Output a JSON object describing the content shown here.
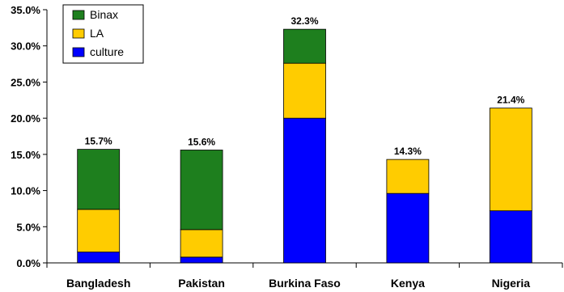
{
  "chart_data": {
    "type": "bar",
    "stacked": true,
    "categories": [
      "Bangladesh",
      "Pakistan",
      "Burkina Faso",
      "Kenya",
      "Nigeria"
    ],
    "series": [
      {
        "name": "culture",
        "color": "#0000ff",
        "values": [
          1.5,
          0.8,
          20.0,
          9.6,
          7.2
        ]
      },
      {
        "name": "LA",
        "color": "#ffcc00",
        "values": [
          5.9,
          3.8,
          7.6,
          4.7,
          14.2
        ]
      },
      {
        "name": "Binax",
        "color": "#1e7f1e",
        "values": [
          8.3,
          11.0,
          4.7,
          0.0,
          0.0
        ]
      }
    ],
    "totals": [
      15.7,
      15.6,
      32.3,
      14.3,
      21.4
    ],
    "data_labels": [
      "15.7%",
      "15.6%",
      "32.3%",
      "14.3%",
      "21.4%"
    ],
    "legend_order": [
      "Binax",
      "LA",
      "culture"
    ],
    "legend_position": "top-left",
    "ylim": [
      0,
      35
    ],
    "yticks": [
      0,
      5,
      10,
      15,
      20,
      25,
      30,
      35
    ],
    "ytick_labels": [
      "0.0%",
      "5.0%",
      "10.0%",
      "15.0%",
      "20.0%",
      "25.0%",
      "30.0%",
      "35.0%"
    ],
    "grid": false
  }
}
